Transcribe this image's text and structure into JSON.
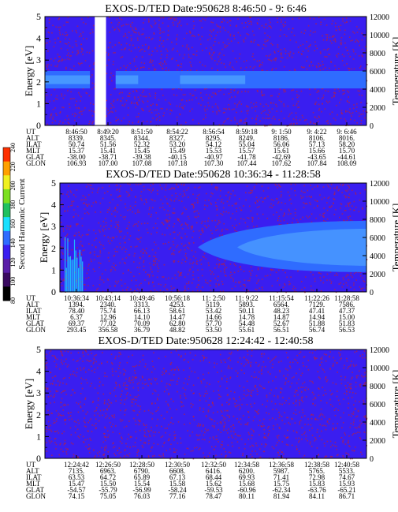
{
  "colors": {
    "band_blue": "#2f6cff",
    "band_blue_light": "#4ea2ff",
    "background_blue": "#3a1ef0",
    "gap_white": "#ffffff",
    "noise_red": "#b0204a"
  },
  "colorbar": {
    "label": "Second Harmonic Current",
    "ticks": [
      "80",
      "100",
      "120",
      "140",
      "160",
      "180",
      "200",
      "220",
      "240"
    ],
    "colors": [
      "#000000",
      "#3a0a60",
      "#5a1ea8",
      "#3a1ef0",
      "#2f6cff",
      "#19e0ff",
      "#20c060",
      "#7ce020",
      "#f0f020",
      "#ffa000",
      "#ff3000"
    ]
  },
  "chart_data": [
    {
      "type": "heatmap",
      "title": "EXOS-D/TED   Date:950628   8:46:50 - 9: 6:46",
      "ylabel": "Energy [eV]",
      "y2label": "Temperature [K]",
      "ylim": [
        0,
        5
      ],
      "y2lim": [
        0,
        12000
      ],
      "yticks": [
        "0",
        "1",
        "2",
        "3",
        "4",
        "5"
      ],
      "y2ticks": [
        "0",
        "2000",
        "4000",
        "6000",
        "8000",
        "10000",
        "12000"
      ],
      "band": {
        "energy_low": 1.7,
        "energy_high": 2.5,
        "segments": [
          [
            0.0,
            0.14
          ],
          [
            0.22,
            0.42
          ],
          [
            0.42,
            1.0
          ]
        ]
      },
      "data_gap": [
        0.155,
        0.19
      ],
      "table": {
        "labels": [
          "UT",
          "ALT",
          "ILAT",
          "MLT",
          "GLAT",
          "GLON"
        ],
        "columns": [
          [
            "8:46:50",
            "8339.",
            "50.74",
            "15.37",
            "-38.00",
            "106.93"
          ],
          [
            "8:49:20",
            "8345.",
            "51.56",
            "15.41",
            "-38.71",
            "107.00"
          ],
          [
            "8:51:50",
            "8344.",
            "52.32",
            "15.45",
            "-39.38",
            "107.08"
          ],
          [
            "8:54:22",
            "8327.",
            "53.20",
            "15.49",
            "-40.15",
            "107.18"
          ],
          [
            "8:56:54",
            "8295.",
            "54.12",
            "15.53",
            "-40.97",
            "107.30"
          ],
          [
            "8:59:18",
            "8249.",
            "55.04",
            "15.57",
            "-41.78",
            "107.44"
          ],
          [
            "9: 1:50",
            "8186.",
            "56.06",
            "15.61",
            "-42.69",
            "107.62"
          ],
          [
            "9: 4:22",
            "8106.",
            "57.13",
            "15.66",
            "-43.65",
            "107.84"
          ],
          [
            "9: 6:46",
            "8016.",
            "58.20",
            "15.70",
            "-44.61",
            "108.09"
          ]
        ]
      }
    },
    {
      "type": "heatmap",
      "title": "EXOS-D/TED   Date:950628   10:36:34 - 11:28:58",
      "ylabel": "Energy [eV]",
      "y2label": "Temperature [K]",
      "ylim": [
        0,
        5
      ],
      "y2lim": [
        0,
        12000
      ],
      "yticks": [
        "0",
        "1",
        "2",
        "3",
        "4",
        "5"
      ],
      "y2ticks": [
        "0",
        "2000",
        "4000",
        "6000",
        "8000",
        "10000",
        "12000"
      ],
      "band": {
        "energy_low": 1.2,
        "energy_high": 2.9,
        "segments": [
          [
            0.45,
            1.0
          ]
        ]
      },
      "table": {
        "labels": [
          "UT",
          "ALT",
          "ILAT",
          "MLT",
          "GLAT",
          "GLON"
        ],
        "columns": [
          [
            "10:36:34",
            "1394.",
            "78.40",
            "6.37",
            "69.37",
            "293.45"
          ],
          [
            "10:43:14",
            "2340.",
            "75.74",
            "12.96",
            "77.02",
            "356.58"
          ],
          [
            "10:49:46",
            "3313.",
            "66.13",
            "14.10",
            "70.09",
            "36.79"
          ],
          [
            "10:56:18",
            "4253.",
            "58.61",
            "14.47",
            "62.80",
            "48.82"
          ],
          [
            "11: 2:50",
            "5119.",
            "53.42",
            "14.66",
            "57.70",
            "53.50"
          ],
          [
            "11: 9:22",
            "5893.",
            "50.11",
            "14.78",
            "54.48",
            "55.61"
          ],
          [
            "11:15:54",
            "6564.",
            "48.23",
            "14.87",
            "52.67",
            "56.51"
          ],
          [
            "11:22:26",
            "7129.",
            "47.41",
            "14.94",
            "51.88",
            "56.74"
          ],
          [
            "11:28:58",
            "7586.",
            "47.37",
            "15.00",
            "51.83",
            "56.53"
          ]
        ]
      }
    },
    {
      "type": "heatmap",
      "title": "EXOS-D/TED   Date:950628   12:24:42 - 12:40:58",
      "ylabel": "Energy [eV]",
      "y2label": "Temperature [K]",
      "ylim": [
        0,
        5
      ],
      "y2lim": [
        0,
        12000
      ],
      "yticks": [
        "0",
        "1",
        "2",
        "3",
        "4",
        "5"
      ],
      "y2ticks": [
        "0",
        "2000",
        "4000",
        "6000",
        "8000",
        "10000",
        "12000"
      ],
      "table": {
        "labels": [
          "UT",
          "ALT",
          "ILAT",
          "MLT",
          "GLAT",
          "GLON"
        ],
        "columns": [
          [
            "12:24:42",
            "7135.",
            "63.53",
            "15.47",
            "-54.57",
            "74.15"
          ],
          [
            "12:26:50",
            "6963.",
            "64.72",
            "15.50",
            "-55.79",
            "75.05"
          ],
          [
            "12:28:50",
            "6790.",
            "65.89",
            "15.54",
            "-56.99",
            "76.03"
          ],
          [
            "12:30:50",
            "6608.",
            "67.13",
            "15.58",
            "-58.24",
            "77.16"
          ],
          [
            "12:32:50",
            "6416.",
            "68.44",
            "15.62",
            "-59.53",
            "78.47"
          ],
          [
            "12:34:58",
            "6200.",
            "69.93",
            "15.68",
            "-60.96",
            "80.11"
          ],
          [
            "12:36:58",
            "5987.",
            "71.41",
            "15.75",
            "-62.34",
            "81.94"
          ],
          [
            "12:38:58",
            "5765.",
            "72.98",
            "15.83",
            "-63.76",
            "84.11"
          ],
          [
            "12:40:58",
            "5533.",
            "74.67",
            "15.93",
            "-65.21",
            "86.71"
          ]
        ]
      }
    }
  ]
}
